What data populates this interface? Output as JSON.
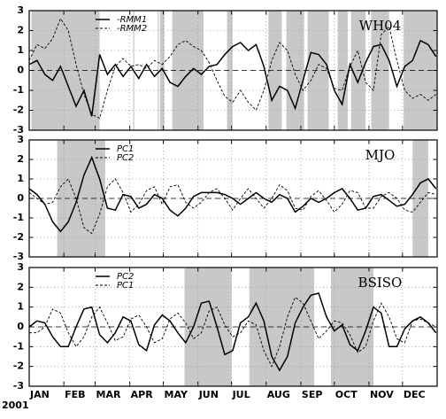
{
  "chart_data": [
    {
      "type": "line",
      "title": "WH04",
      "x": [
        0,
        7,
        14,
        21,
        28,
        35,
        42,
        49,
        56,
        63,
        70,
        77,
        84,
        91,
        98,
        105,
        112,
        119,
        126,
        133,
        140,
        147,
        154,
        161,
        168,
        175,
        182,
        189,
        196,
        203,
        210,
        217,
        224,
        231,
        238,
        245,
        252,
        259,
        266,
        273,
        280,
        287,
        294,
        301,
        308,
        315,
        322,
        329,
        336,
        343,
        350,
        357,
        364
      ],
      "series": [
        {
          "name": "-RMM1",
          "color": "#000000",
          "style": "solid",
          "values": [
            0.3,
            0.5,
            -0.2,
            -0.5,
            0.2,
            -0.8,
            -1.8,
            -1.0,
            -2.3,
            0.8,
            -0.2,
            0.3,
            -0.3,
            0.2,
            -0.4,
            0.3,
            -0.3,
            0.1,
            -0.6,
            -0.8,
            -0.3,
            0.1,
            -0.2,
            0.2,
            0.3,
            0.8,
            1.2,
            1.4,
            1.0,
            1.3,
            0.2,
            -1.5,
            -0.8,
            -1.0,
            -1.9,
            -0.5,
            0.9,
            0.8,
            0.3,
            -1.0,
            -1.7,
            0.3,
            -0.6,
            0.4,
            1.2,
            1.3,
            0.5,
            -0.8,
            0.2,
            0.5,
            1.5,
            1.3,
            0.7
          ]
        },
        {
          "name": "-RMM2",
          "color": "#000000",
          "style": "dashed",
          "values": [
            0.5,
            1.3,
            1.1,
            1.6,
            2.6,
            2.0,
            0.3,
            -1.2,
            -2.2,
            -2.4,
            -1.0,
            0.2,
            0.6,
            0.2,
            0.3,
            0.1,
            0.5,
            0.3,
            0.7,
            1.3,
            1.5,
            1.2,
            1.0,
            0.4,
            -0.5,
            -1.3,
            -1.6,
            -1.0,
            -1.6,
            -2.0,
            -1.0,
            0.5,
            1.4,
            1.0,
            -0.2,
            -1.0,
            -0.5,
            0.3,
            0.1,
            -0.9,
            -1.0,
            0.2,
            1.0,
            -0.6,
            -1.0,
            1.8,
            2.2,
            0.5,
            -1.0,
            -1.4,
            -1.2,
            -1.5,
            -1.2
          ]
        }
      ],
      "shaded": [
        [
          2,
          63
        ],
        [
          93,
          94
        ],
        [
          115,
          116
        ],
        [
          117,
          121
        ],
        [
          128,
          156
        ],
        [
          177,
          182
        ],
        [
          214,
          226
        ],
        [
          230,
          246
        ],
        [
          249,
          268
        ],
        [
          276,
          285
        ],
        [
          288,
          301
        ],
        [
          306,
          322
        ],
        [
          335,
          365
        ]
      ],
      "shade_color": "#c8c8c8",
      "xlim": [
        0,
        365
      ],
      "xticks": [
        0,
        31,
        59,
        90,
        120,
        151,
        181,
        212,
        243,
        273,
        304,
        334
      ],
      "ylim": [
        -3,
        3
      ],
      "yticks": [
        -3,
        -2,
        -1,
        0,
        1,
        2,
        3
      ],
      "grid": true
    },
    {
      "type": "line",
      "title": "MJO",
      "x": [
        0,
        7,
        14,
        21,
        28,
        35,
        42,
        49,
        56,
        63,
        70,
        77,
        84,
        91,
        98,
        105,
        112,
        119,
        126,
        133,
        140,
        147,
        154,
        161,
        168,
        175,
        182,
        189,
        196,
        203,
        210,
        217,
        224,
        231,
        238,
        245,
        252,
        259,
        266,
        273,
        280,
        287,
        294,
        301,
        308,
        315,
        322,
        329,
        336,
        343,
        350,
        357,
        364
      ],
      "series": [
        {
          "name": "PC1",
          "color": "#000000",
          "style": "solid",
          "values": [
            0.5,
            0.2,
            -0.3,
            -1.2,
            -1.7,
            -1.2,
            -0.2,
            1.2,
            2.1,
            1.0,
            -0.5,
            -0.6,
            0.2,
            0.1,
            -0.5,
            -0.3,
            0.2,
            0.0,
            -0.6,
            -0.9,
            -0.5,
            0.1,
            0.3,
            0.3,
            0.3,
            0.2,
            0.0,
            -0.3,
            0.0,
            0.3,
            0.0,
            -0.2,
            0.2,
            0.0,
            -0.7,
            -0.4,
            0.0,
            -0.2,
            0.0,
            0.3,
            0.5,
            0.0,
            -0.6,
            -0.5,
            0.1,
            0.2,
            -0.1,
            -0.4,
            -0.3,
            0.2,
            0.8,
            1.0,
            0.5
          ]
        },
        {
          "name": "PC2",
          "color": "#000000",
          "style": "dashed",
          "values": [
            0.3,
            0.0,
            -0.3,
            -0.2,
            0.6,
            1.0,
            0.0,
            -1.5,
            -1.8,
            -0.8,
            0.6,
            1.0,
            0.3,
            -0.7,
            -0.3,
            0.4,
            0.6,
            -0.3,
            0.6,
            0.7,
            -0.2,
            -0.5,
            -0.2,
            0.3,
            0.5,
            0.0,
            -0.6,
            0.0,
            0.5,
            0.0,
            -0.5,
            0.0,
            0.7,
            0.4,
            -0.5,
            -0.6,
            0.1,
            0.4,
            -0.1,
            -0.7,
            -0.3,
            0.4,
            0.3,
            -0.5,
            -0.5,
            0.1,
            0.3,
            0.0,
            -0.6,
            -0.7,
            -0.2,
            0.3,
            0.2
          ]
        }
      ],
      "shaded": [
        [
          25,
          68
        ],
        [
          343,
          357
        ]
      ],
      "shade_color": "#c8c8c8",
      "xlim": [
        0,
        365
      ],
      "xticks": [
        0,
        31,
        59,
        90,
        120,
        151,
        181,
        212,
        243,
        273,
        304,
        334
      ],
      "ylim": [
        -3,
        3
      ],
      "yticks": [
        -3,
        -2,
        -1,
        0,
        1,
        2,
        3
      ],
      "grid": true
    },
    {
      "type": "line",
      "title": "BSISO",
      "xlabel": "2001",
      "x": [
        0,
        7,
        14,
        21,
        28,
        35,
        42,
        49,
        56,
        63,
        70,
        77,
        84,
        91,
        98,
        105,
        112,
        119,
        126,
        133,
        140,
        147,
        154,
        161,
        168,
        175,
        182,
        189,
        196,
        203,
        210,
        217,
        224,
        231,
        238,
        245,
        252,
        259,
        266,
        273,
        280,
        287,
        294,
        301,
        308,
        315,
        322,
        329,
        336,
        343,
        350,
        357,
        364
      ],
      "series": [
        {
          "name": "PC2",
          "color": "#000000",
          "style": "solid",
          "values": [
            0.0,
            0.3,
            0.2,
            -0.5,
            -1.0,
            -1.0,
            0.0,
            0.9,
            1.0,
            -0.4,
            -0.8,
            -0.3,
            0.5,
            0.3,
            -0.9,
            -1.2,
            0.1,
            0.6,
            0.3,
            -0.3,
            -0.8,
            0.0,
            1.2,
            1.3,
            0.0,
            -1.4,
            -1.2,
            0.2,
            0.5,
            1.2,
            0.3,
            -1.5,
            -2.2,
            -1.5,
            0.2,
            1.0,
            1.6,
            1.7,
            0.5,
            -0.2,
            0.1,
            -0.9,
            -1.2,
            -0.2,
            1.0,
            0.7,
            -1.0,
            -1.0,
            -0.1,
            0.3,
            0.5,
            0.2,
            -0.3
          ]
        },
        {
          "name": "PC1",
          "color": "#000000",
          "style": "dashed",
          "values": [
            -0.3,
            -0.3,
            0.0,
            0.9,
            0.7,
            -0.3,
            -1.0,
            -0.5,
            0.5,
            1.0,
            0.2,
            -0.7,
            -0.5,
            0.4,
            0.6,
            0.0,
            -0.8,
            -0.6,
            0.4,
            0.7,
            0.2,
            -0.6,
            -0.3,
            0.8,
            1.0,
            0.1,
            -0.5,
            -0.3,
            0.3,
            0.1,
            -1.2,
            -2.0,
            -1.0,
            0.5,
            1.5,
            1.2,
            0.3,
            -0.6,
            -0.2,
            0.3,
            0.2,
            -0.4,
            -1.3,
            -1.0,
            0.3,
            1.2,
            0.5,
            -0.6,
            -0.8,
            0.3,
            0.4,
            0.2,
            0.0
          ]
        }
      ],
      "shaded": [
        [
          139,
          181
        ],
        [
          197,
          255
        ],
        [
          270,
          308
        ]
      ],
      "shade_color": "#c8c8c8",
      "xlim": [
        0,
        365
      ],
      "xticks": [
        {
          "value": 0,
          "label": "JAN"
        },
        {
          "value": 31,
          "label": "FEB"
        },
        {
          "value": 59,
          "label": "MAR"
        },
        {
          "value": 90,
          "label": "APR"
        },
        {
          "value": 120,
          "label": "MAY"
        },
        {
          "value": 151,
          "label": "JUN"
        },
        {
          "value": 181,
          "label": "JUL"
        },
        {
          "value": 212,
          "label": "AUG"
        },
        {
          "value": 243,
          "label": "SEP"
        },
        {
          "value": 273,
          "label": "OCT"
        },
        {
          "value": 304,
          "label": "NOV"
        },
        {
          "value": 334,
          "label": "DEC"
        }
      ],
      "ylim": [
        -3,
        3
      ],
      "yticks": [
        -3,
        -2,
        -1,
        0,
        1,
        2,
        3
      ],
      "grid": true
    }
  ]
}
